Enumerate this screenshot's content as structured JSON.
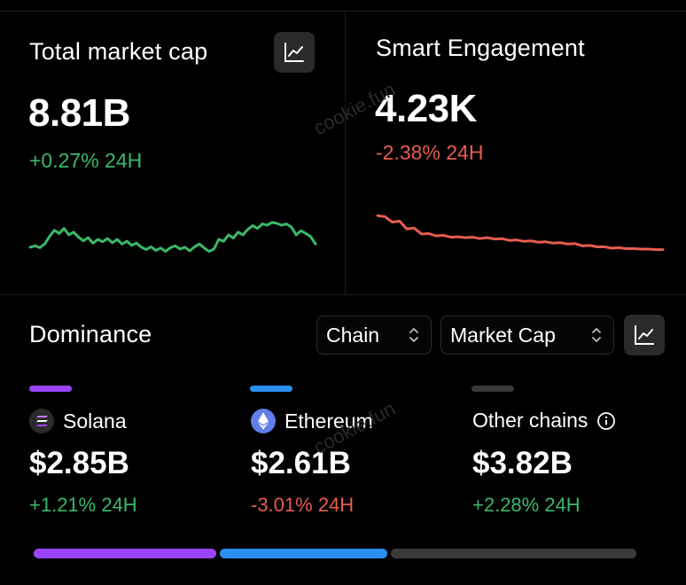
{
  "market_cap": {
    "title": "Total market cap",
    "value": "8.81B",
    "change": "+0.27% 24H"
  },
  "engagement": {
    "title": "Smart Engagement",
    "value": "4.23K",
    "change": "-2.38% 24H"
  },
  "dominance": {
    "title": "Dominance",
    "chain_select": "Chain",
    "metric_select": "Market Cap",
    "chains": [
      {
        "name": "Solana",
        "value": "$2.85B",
        "change": "+1.21% 24H",
        "color": "#9945ff"
      },
      {
        "name": "Ethereum",
        "value": "$2.61B",
        "change": "-3.01% 24H",
        "color": "#2b8ff0"
      },
      {
        "name": "Other chains",
        "value": "$3.82B",
        "change": "+2.28% 24H",
        "color": "#3a3a3a"
      }
    ]
  },
  "watermark": "cookie.fun",
  "colors": {
    "positive": "#3bb86a",
    "negative": "#e65d50",
    "background": "#000000"
  },
  "chart_data": [
    {
      "type": "line",
      "title": "Total market cap sparkline",
      "x": [
        0,
        1,
        2,
        3,
        4,
        5,
        6,
        7,
        8,
        9,
        10,
        11,
        12,
        13,
        14,
        15,
        16,
        17,
        18,
        19,
        20,
        21,
        22,
        23,
        24,
        25,
        26,
        27,
        28,
        29,
        30,
        31,
        32,
        33,
        34,
        35,
        36,
        37,
        38,
        39,
        40,
        41,
        42,
        43,
        44,
        45,
        46,
        47,
        48,
        49,
        50,
        51,
        52,
        53,
        54,
        55,
        56,
        57,
        58,
        59
      ],
      "values": [
        8.735,
        8.738,
        8.734,
        8.742,
        8.758,
        8.772,
        8.765,
        8.776,
        8.762,
        8.768,
        8.757,
        8.749,
        8.756,
        8.744,
        8.752,
        8.747,
        8.754,
        8.745,
        8.752,
        8.742,
        8.748,
        8.739,
        8.744,
        8.735,
        8.73,
        8.736,
        8.728,
        8.733,
        8.726,
        8.734,
        8.738,
        8.731,
        8.735,
        8.727,
        8.736,
        8.742,
        8.733,
        8.726,
        8.731,
        8.752,
        8.748,
        8.762,
        8.755,
        8.768,
        8.762,
        8.774,
        8.782,
        8.776,
        8.786,
        8.783,
        8.789,
        8.787,
        8.783,
        8.786,
        8.779,
        8.762,
        8.771,
        8.765,
        8.758,
        8.742
      ],
      "ylim": [
        8.7,
        8.82
      ]
    },
    {
      "type": "line",
      "title": "Smart Engagement sparkline",
      "x": [
        0,
        1,
        2,
        3,
        4,
        5,
        6,
        7,
        8,
        9,
        10,
        11,
        12,
        13,
        14,
        15,
        16,
        17,
        18,
        19,
        20,
        21,
        22,
        23,
        24,
        25,
        26,
        27,
        28,
        29,
        30,
        31,
        32,
        33,
        34,
        35,
        36,
        37,
        38,
        39
      ],
      "values": [
        4.32,
        4.318,
        4.306,
        4.308,
        4.291,
        4.293,
        4.28,
        4.281,
        4.276,
        4.277,
        4.273,
        4.274,
        4.272,
        4.273,
        4.27,
        4.272,
        4.269,
        4.27,
        4.266,
        4.267,
        4.264,
        4.265,
        4.262,
        4.263,
        4.26,
        4.261,
        4.258,
        4.259,
        4.254,
        4.255,
        4.252,
        4.252,
        4.249,
        4.25,
        4.248,
        4.248,
        4.247,
        4.247,
        4.246,
        4.246
      ],
      "ylim": [
        4.22,
        4.34
      ]
    },
    {
      "type": "bar",
      "title": "Dominance distribution",
      "categories": [
        "Solana",
        "Ethereum",
        "Other chains"
      ],
      "values": [
        2.85,
        2.61,
        3.82
      ]
    }
  ]
}
